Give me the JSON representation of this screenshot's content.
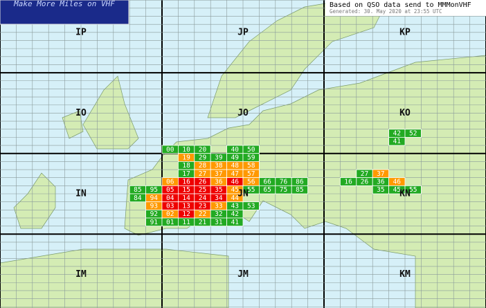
{
  "logo": "Make More Miles on VHF",
  "info": {
    "title": "Based on QSO data send to MMMonVHF",
    "generated": "Generated: 30. May 2020 at 23:55 UTC"
  },
  "fields": [
    {
      "label": "IP",
      "squares": []
    },
    {
      "label": "JP",
      "squares": []
    },
    {
      "label": "KP",
      "squares": []
    },
    {
      "label": "IO",
      "squares": []
    },
    {
      "label": "JO",
      "squares": [
        {
          "label": "00",
          "color": "#22aa22"
        },
        {
          "label": "10",
          "color": "#22aa22"
        },
        {
          "label": "20",
          "color": "#22aa22"
        },
        {
          "label": "40",
          "color": "#22aa22"
        },
        {
          "label": "50",
          "color": "#22aa22"
        }
      ]
    },
    {
      "label": "KO",
      "squares": [
        {
          "label": "42",
          "color": "#22aa22"
        },
        {
          "label": "52",
          "color": "#22aa22"
        },
        {
          "label": "41",
          "color": "#22aa22"
        }
      ]
    },
    {
      "label": "IN",
      "squares": [
        {
          "label": "85",
          "color": "#22aa22"
        },
        {
          "label": "95",
          "color": "#22aa22"
        },
        {
          "label": "84",
          "color": "#22aa22"
        },
        {
          "label": "94",
          "color": "#ff9900"
        },
        {
          "label": "93",
          "color": "#ff9900"
        },
        {
          "label": "92",
          "color": "#22aa22"
        },
        {
          "label": "91",
          "color": "#22aa22"
        }
      ]
    },
    {
      "label": "JN",
      "squares": [
        {
          "label": "19",
          "color": "#ff9900"
        },
        {
          "label": "29",
          "color": "#22aa22"
        },
        {
          "label": "39",
          "color": "#22aa22"
        },
        {
          "label": "49",
          "color": "#22aa22"
        },
        {
          "label": "59",
          "color": "#22aa22"
        },
        {
          "label": "18",
          "color": "#22aa22"
        },
        {
          "label": "28",
          "color": "#ff9900"
        },
        {
          "label": "38",
          "color": "#ff9900"
        },
        {
          "label": "48",
          "color": "#ff9900"
        },
        {
          "label": "58",
          "color": "#ff9900"
        },
        {
          "label": "17",
          "color": "#22aa22"
        },
        {
          "label": "27",
          "color": "#ff9900"
        },
        {
          "label": "37",
          "color": "#ff9900"
        },
        {
          "label": "47",
          "color": "#ff9900"
        },
        {
          "label": "57",
          "color": "#ff9900"
        },
        {
          "label": "06",
          "color": "#ff9900"
        },
        {
          "label": "16",
          "color": "#ee0000"
        },
        {
          "label": "26",
          "color": "#ee0000"
        },
        {
          "label": "36",
          "color": "#ff9900"
        },
        {
          "label": "46",
          "color": "#ee0000"
        },
        {
          "label": "56",
          "color": "#ff9900"
        },
        {
          "label": "66",
          "color": "#22aa22"
        },
        {
          "label": "76",
          "color": "#22aa22"
        },
        {
          "label": "86",
          "color": "#22aa22"
        },
        {
          "label": "05",
          "color": "#ee0000"
        },
        {
          "label": "15",
          "color": "#ee0000"
        },
        {
          "label": "25",
          "color": "#ee0000"
        },
        {
          "label": "35",
          "color": "#ee0000"
        },
        {
          "label": "45",
          "color": "#ff9900"
        },
        {
          "label": "55",
          "color": "#22aa22"
        },
        {
          "label": "65",
          "color": "#22aa22"
        },
        {
          "label": "75",
          "color": "#22aa22"
        },
        {
          "label": "85",
          "color": "#22aa22"
        },
        {
          "label": "04",
          "color": "#ee0000"
        },
        {
          "label": "14",
          "color": "#ee0000"
        },
        {
          "label": "24",
          "color": "#ee0000"
        },
        {
          "label": "34",
          "color": "#ee0000"
        },
        {
          "label": "44",
          "color": "#ff9900"
        },
        {
          "label": "03",
          "color": "#ee0000"
        },
        {
          "label": "13",
          "color": "#ee0000"
        },
        {
          "label": "23",
          "color": "#ee0000"
        },
        {
          "label": "33",
          "color": "#ff9900"
        },
        {
          "label": "43",
          "color": "#22aa22"
        },
        {
          "label": "53",
          "color": "#22aa22"
        },
        {
          "label": "02",
          "color": "#ff9900"
        },
        {
          "label": "12",
          "color": "#ee0000"
        },
        {
          "label": "22",
          "color": "#ff9900"
        },
        {
          "label": "32",
          "color": "#22aa22"
        },
        {
          "label": "42",
          "color": "#22aa22"
        },
        {
          "label": "01",
          "color": "#22aa22"
        },
        {
          "label": "11",
          "color": "#22aa22"
        },
        {
          "label": "21",
          "color": "#22aa22"
        },
        {
          "label": "31",
          "color": "#22aa22"
        },
        {
          "label": "41",
          "color": "#22aa22"
        }
      ]
    },
    {
      "label": "KN",
      "squares": [
        {
          "label": "27",
          "color": "#22aa22"
        },
        {
          "label": "37",
          "color": "#ff9900"
        },
        {
          "label": "16",
          "color": "#22aa22"
        },
        {
          "label": "26",
          "color": "#22aa22"
        },
        {
          "label": "36",
          "color": "#22aa22"
        },
        {
          "label": "46",
          "color": "#ff9900"
        },
        {
          "label": "35",
          "color": "#22aa22"
        },
        {
          "label": "45",
          "color": "#22aa22"
        },
        {
          "label": "55",
          "color": "#22aa22"
        }
      ]
    },
    {
      "label": "IM",
      "squares": []
    },
    {
      "label": "JM",
      "squares": []
    },
    {
      "label": "KM",
      "squares": []
    }
  ]
}
